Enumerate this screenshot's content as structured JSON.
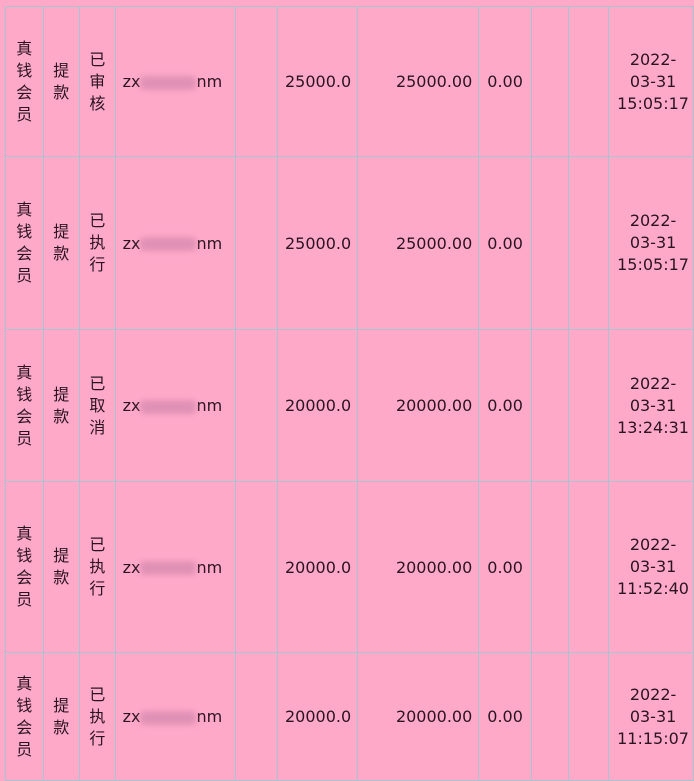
{
  "rows": [
    {
      "type": [
        "真",
        "钱",
        "会",
        "员"
      ],
      "action": [
        "提",
        "款"
      ],
      "status": [
        "已",
        "审",
        "核"
      ],
      "user_prefix": "zx",
      "user_suffix": "nm",
      "amount": "25000.0",
      "actual": "25000.00",
      "fee": "0.00",
      "date": "2022-",
      "date2": "03-31",
      "time": "15:05:17"
    },
    {
      "type": [
        "真",
        "钱",
        "会",
        "员"
      ],
      "action": [
        "提",
        "款"
      ],
      "status": [
        "已",
        "执",
        "行"
      ],
      "user_prefix": "zx",
      "user_suffix": "nm",
      "amount": "25000.0",
      "actual": "25000.00",
      "fee": "0.00",
      "date": "2022-",
      "date2": "03-31",
      "time": "15:05:17"
    },
    {
      "type": [
        "真",
        "钱",
        "会",
        "员"
      ],
      "action": [
        "提",
        "款"
      ],
      "status": [
        "已",
        "取",
        "消"
      ],
      "user_prefix": "zx",
      "user_suffix": "nm",
      "amount": "20000.0",
      "actual": "20000.00",
      "fee": "0.00",
      "date": "2022-",
      "date2": "03-31",
      "time": "13:24:31"
    },
    {
      "type": [
        "真",
        "钱",
        "会",
        "员"
      ],
      "action": [
        "提",
        "款"
      ],
      "status": [
        "已",
        "执",
        "行"
      ],
      "user_prefix": "zx",
      "user_suffix": "nm",
      "amount": "20000.0",
      "actual": "20000.00",
      "fee": "0.00",
      "date": "2022-",
      "date2": "03-31",
      "time": "11:52:40"
    },
    {
      "type": [
        "真",
        "钱",
        "会",
        "员"
      ],
      "action": [
        "提",
        "款"
      ],
      "status": [
        "已",
        "执",
        "行"
      ],
      "user_prefix": "zx",
      "user_suffix": "nm",
      "amount": "20000.0",
      "actual": "20000.00",
      "fee": "0.00",
      "date": "2022-",
      "date2": "03-31",
      "time": "11:15:07"
    }
  ]
}
